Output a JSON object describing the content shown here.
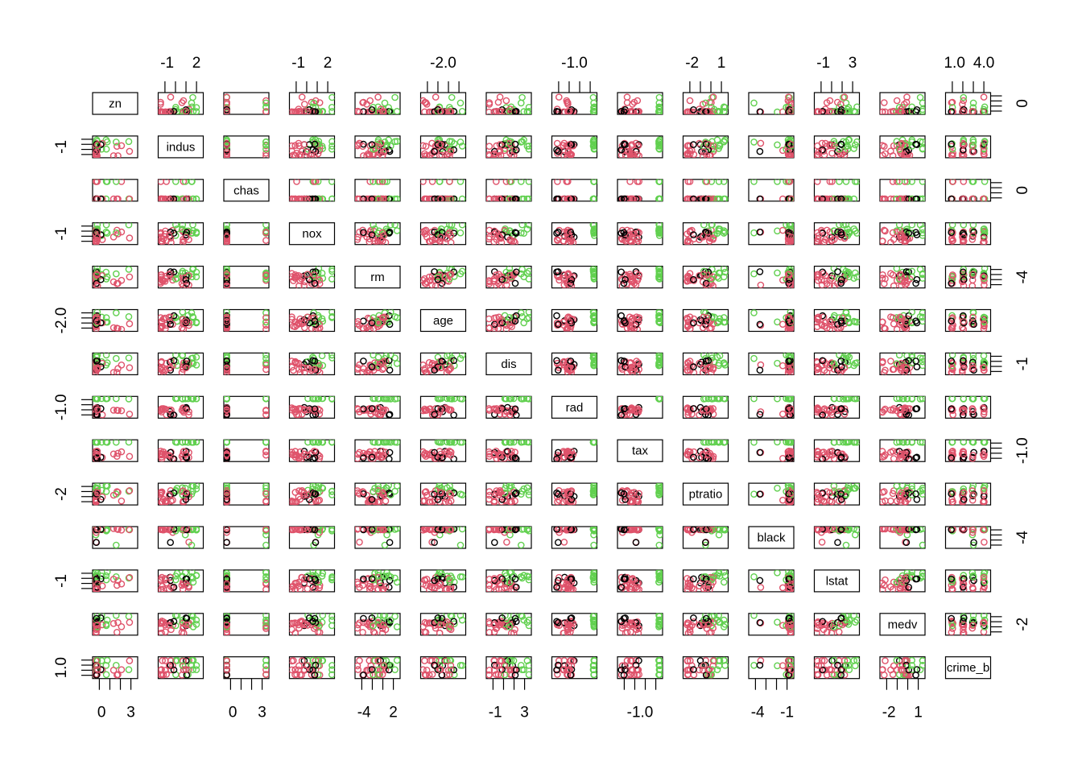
{
  "chart_data": {
    "type": "scatter",
    "subtype": "pairs-matrix",
    "title": "",
    "variables": [
      "zn",
      "indus",
      "chas",
      "nox",
      "rm",
      "age",
      "dis",
      "rad",
      "tax",
      "ptratio",
      "black",
      "lstat",
      "medv",
      "crime_b"
    ],
    "point_colors": [
      "#000000",
      "#DF536B",
      "#61D04F"
    ],
    "axis_labels": [
      {
        "side": "top",
        "var": 1,
        "labels": [
          "-1",
          "2"
        ]
      },
      {
        "side": "top",
        "var": 3,
        "labels": [
          "-1",
          "2"
        ]
      },
      {
        "side": "top",
        "var": 5,
        "labels": [
          "-2.0"
        ]
      },
      {
        "side": "top",
        "var": 7,
        "labels": [
          "-1.0"
        ]
      },
      {
        "side": "top",
        "var": 9,
        "labels": [
          "-2",
          "1"
        ]
      },
      {
        "side": "top",
        "var": 11,
        "labels": [
          "-1",
          "3"
        ]
      },
      {
        "side": "top",
        "var": 13,
        "labels": [
          "1.0",
          "4.0"
        ]
      },
      {
        "side": "bottom",
        "var": 0,
        "labels": [
          "0",
          "3"
        ]
      },
      {
        "side": "bottom",
        "var": 2,
        "labels": [
          "0",
          "3"
        ]
      },
      {
        "side": "bottom",
        "var": 4,
        "labels": [
          "-4",
          "2"
        ]
      },
      {
        "side": "bottom",
        "var": 6,
        "labels": [
          "-1",
          "3"
        ]
      },
      {
        "side": "bottom",
        "var": 8,
        "labels": [
          "-1.0"
        ]
      },
      {
        "side": "bottom",
        "var": 10,
        "labels": [
          "-4",
          "-1"
        ]
      },
      {
        "side": "bottom",
        "var": 12,
        "labels": [
          "-2",
          "1"
        ]
      },
      {
        "side": "left",
        "var": 1,
        "labels": [
          "-1"
        ]
      },
      {
        "side": "left",
        "var": 3,
        "labels": [
          "-1"
        ]
      },
      {
        "side": "left",
        "var": 5,
        "labels": [
          "-2.0"
        ]
      },
      {
        "side": "left",
        "var": 7,
        "labels": [
          "-1.0"
        ]
      },
      {
        "side": "left",
        "var": 9,
        "labels": [
          "-2"
        ]
      },
      {
        "side": "left",
        "var": 11,
        "labels": [
          "-1"
        ]
      },
      {
        "side": "left",
        "var": 13,
        "labels": [
          "1.0"
        ]
      },
      {
        "side": "right",
        "var": 0,
        "labels": [
          "0"
        ]
      },
      {
        "side": "right",
        "var": 2,
        "labels": [
          "0"
        ]
      },
      {
        "side": "right",
        "var": 4,
        "labels": [
          "-4"
        ]
      },
      {
        "side": "right",
        "var": 6,
        "labels": [
          "-1"
        ]
      },
      {
        "side": "right",
        "var": 8,
        "labels": [
          "-1.0"
        ]
      },
      {
        "side": "right",
        "var": 10,
        "labels": [
          "-4"
        ]
      },
      {
        "side": "right",
        "var": 12,
        "labels": [
          "-2"
        ]
      }
    ],
    "grid": false,
    "legend": "none"
  }
}
